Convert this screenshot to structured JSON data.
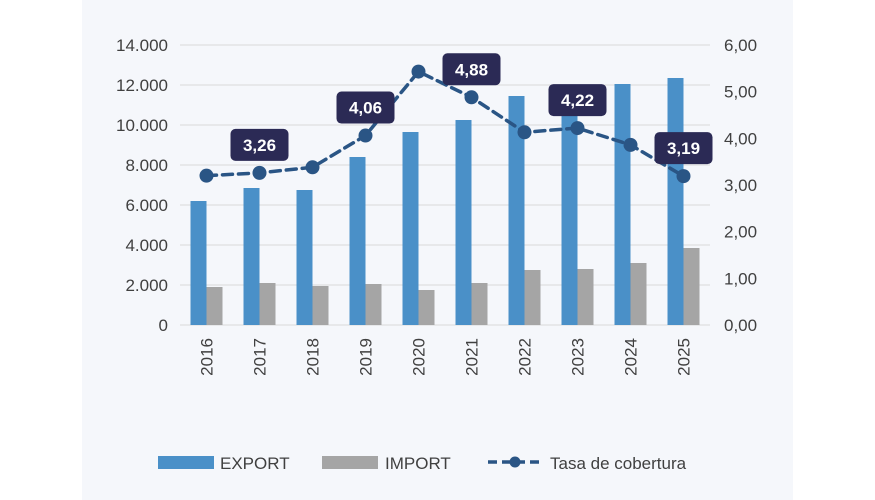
{
  "colors": {
    "export": "#4a90c8",
    "import": "#a5a5a5",
    "rate": "#2a5585",
    "callout": "#2b2a55",
    "grid": "#d9d9d9",
    "background": "#f5f7fb"
  },
  "chart_data": {
    "type": "bar",
    "categories": [
      "2016",
      "2017",
      "2018",
      "2019",
      "2020",
      "2021",
      "2022",
      "2023",
      "2024",
      "2025"
    ],
    "series": [
      {
        "name": "EXPORT",
        "axis": "left",
        "type": "bar",
        "color": "#4a90c8",
        "values": [
          6200,
          6850,
          6750,
          8400,
          9650,
          10250,
          11450,
          10550,
          12050,
          12350
        ]
      },
      {
        "name": "IMPORT",
        "axis": "left",
        "type": "bar",
        "color": "#a5a5a5",
        "values": [
          1900,
          2100,
          1950,
          2050,
          1750,
          2100,
          2750,
          2800,
          3100,
          3850
        ]
      },
      {
        "name": "Tasa de cobertura",
        "axis": "right",
        "type": "line",
        "style": "dashed",
        "marker": "circle",
        "color": "#2a5585",
        "values": [
          3.2,
          3.26,
          3.38,
          4.06,
          5.43,
          4.88,
          4.13,
          4.22,
          3.86,
          3.19
        ]
      }
    ],
    "left_axis": {
      "ylim": [
        0,
        14000
      ],
      "ticks": [
        "0",
        "2.000",
        "4.000",
        "6.000",
        "8.000",
        "10.000",
        "12.000",
        "14.000"
      ]
    },
    "right_axis": {
      "ylim": [
        0,
        6
      ],
      "ticks": [
        "0,00",
        "1,00",
        "2,00",
        "3,00",
        "4,00",
        "5,00",
        "6,00"
      ]
    },
    "data_labels": [
      {
        "category": "2017",
        "text": "3,26"
      },
      {
        "category": "2019",
        "text": "4,06"
      },
      {
        "category": "2021",
        "text": "4,88"
      },
      {
        "category": "2023",
        "text": "4,22"
      },
      {
        "category": "2025",
        "text": "3,19"
      }
    ],
    "legend": {
      "position": "bottom",
      "items": [
        {
          "label": "EXPORT",
          "icon": "bar-swatch"
        },
        {
          "label": "IMPORT",
          "icon": "bar-swatch"
        },
        {
          "label": "Tasa de cobertura",
          "icon": "dashed-line-marker"
        }
      ]
    },
    "grid": true,
    "xlabel": "",
    "ylabel": "",
    "title": ""
  }
}
